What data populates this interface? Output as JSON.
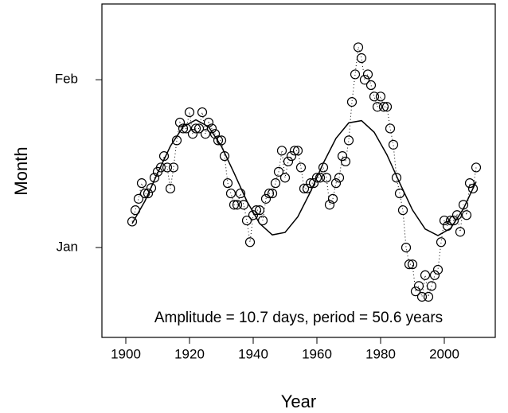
{
  "chart_data": {
    "type": "scatter",
    "annotation": "Amplitude = 10.7 days, period = 50.6 years",
    "xlabel": "Year",
    "ylabel": "Month",
    "x": [
      1902,
      1903,
      1904,
      1905,
      1906,
      1907,
      1908,
      1909,
      1910,
      1911,
      1912,
      1913,
      1914,
      1915,
      1916,
      1917,
      1918,
      1919,
      1920,
      1921,
      1922,
      1923,
      1924,
      1925,
      1926,
      1927,
      1928,
      1929,
      1930,
      1931,
      1932,
      1933,
      1934,
      1935,
      1936,
      1937,
      1938,
      1939,
      1940,
      1941,
      1942,
      1943,
      1944,
      1945,
      1946,
      1947,
      1948,
      1949,
      1950,
      1951,
      1952,
      1953,
      1954,
      1955,
      1956,
      1957,
      1958,
      1959,
      1960,
      1961,
      1962,
      1963,
      1964,
      1965,
      1966,
      1967,
      1968,
      1969,
      1970,
      1971,
      1972,
      1973,
      1974,
      1975,
      1976,
      1977,
      1978,
      1979,
      1980,
      1981,
      1982,
      1983,
      1984,
      1985,
      1986,
      1987,
      1988,
      1989,
      1990,
      1991,
      1992,
      1993,
      1994,
      1995,
      1996,
      1997,
      1998,
      1999,
      2000,
      2001,
      2002,
      2003,
      2004,
      2005,
      2006,
      2007,
      2008,
      2009,
      2010
    ],
    "values": [
      4.8,
      6.9,
      9.0,
      11.9,
      10.0,
      10.0,
      11.0,
      12.9,
      14.0,
      14.8,
      16.9,
      14.8,
      10.9,
      14.8,
      19.8,
      23.1,
      22.0,
      22.0,
      25.0,
      21.0,
      22.0,
      22.0,
      25.0,
      21.0,
      23.1,
      22.0,
      21.0,
      19.8,
      19.8,
      16.9,
      11.9,
      10.0,
      7.9,
      7.9,
      10.0,
      7.9,
      5.0,
      1.0,
      6.0,
      6.9,
      6.9,
      5.0,
      9.0,
      10.0,
      10.0,
      11.9,
      14.0,
      17.9,
      12.9,
      15.9,
      16.9,
      17.9,
      17.9,
      14.8,
      10.9,
      10.9,
      11.9,
      11.9,
      12.9,
      12.9,
      14.8,
      12.9,
      7.9,
      9.0,
      11.9,
      12.9,
      16.9,
      15.9,
      19.8,
      26.9,
      32.0,
      37.0,
      35.0,
      31.0,
      32.0,
      30.0,
      27.9,
      26.0,
      27.9,
      26.0,
      26.0,
      22.0,
      19.0,
      12.9,
      10.0,
      6.9,
      0,
      -3.1,
      -3.1,
      -8.1,
      -7.1,
      -9.1,
      -5.1,
      -9.1,
      -7.1,
      -5.1,
      -4.1,
      1.0,
      5.0,
      4.0,
      5.0,
      5.0,
      6.0,
      2.9,
      7.9,
      6.0,
      11.9,
      10.9,
      14.8
    ],
    "color": "#000000",
    "fit": {
      "x": [
        1902,
        1906,
        1910,
        1914,
        1918,
        1922,
        1926,
        1930,
        1934,
        1938,
        1942,
        1946,
        1950,
        1954,
        1958,
        1962,
        1966,
        1970,
        1974,
        1978,
        1982,
        1986,
        1990,
        1994,
        1998,
        2002,
        2006,
        2010
      ],
      "values": [
        4.45,
        8.58,
        13.77,
        18.74,
        22.31,
        23.6,
        22.31,
        18.74,
        13.77,
        8.58,
        4.45,
        2.34,
        2.79,
        5.68,
        10.31,
        15.58,
        20.18,
        23.04,
        23.45,
        21.29,
        17.13,
        11.93,
        6.95,
        3.43,
        2.21,
        3.55,
        7.16,
        12.17
      ]
    },
    "xlim": [
      1892.5,
      2016
    ],
    "xticks": [
      1900,
      1920,
      1940,
      1960,
      1980,
      2000
    ],
    "ylim": [
      -16.6,
      45
    ],
    "yticks": [
      {
        "value": 0,
        "label": "Jan"
      },
      {
        "value": 31,
        "label": "Feb"
      }
    ]
  }
}
